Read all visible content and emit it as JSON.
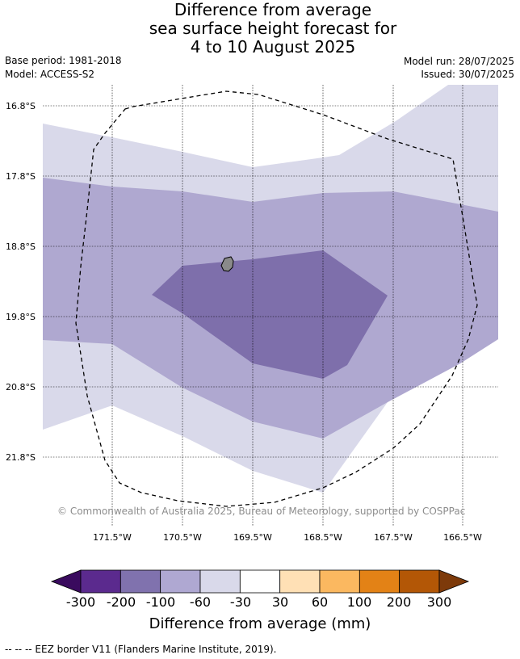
{
  "title": {
    "line1": "Difference from average",
    "line2": "sea surface height forecast for",
    "line3": "4 to 10 August 2025"
  },
  "meta": {
    "base_period": "Base period: 1981-2018",
    "model": "Model: ACCESS-S2",
    "model_run": "Model run: 28/07/2025",
    "issued": "Issued: 30/07/2025"
  },
  "map": {
    "latitude_labels": [
      "16.8°S",
      "17.8°S",
      "18.8°S",
      "19.8°S",
      "20.8°S",
      "21.8°S"
    ],
    "longitude_labels": [
      "171.5°W",
      "170.5°W",
      "169.5°W",
      "168.5°W",
      "167.5°W",
      "166.5°W"
    ],
    "colors": {
      "band_minus30_minus60": "#d9d9ea",
      "band_minus60_minus100": "#afa8d0",
      "band_minus100_minus200": "#7e6fab",
      "land": "#8a8a8a"
    },
    "copyright": "© Commonwealth of Australia 2025, Bureau of Meteorology, supported by COSPPac"
  },
  "colorbar": {
    "colors": [
      "#3a0b5e",
      "#5b2a8e",
      "#8072ae",
      "#afa8d2",
      "#d9d9ea",
      "#ffffff",
      "#ffe0b5",
      "#fbb860",
      "#e38216",
      "#b35706",
      "#7d3a0a"
    ],
    "ticks": [
      "-300",
      "-200",
      "-100",
      "-60",
      "-30",
      "30",
      "60",
      "100",
      "200",
      "300"
    ],
    "label": "Difference from average (mm)"
  },
  "footnote": "--  --  -- EEZ border V11 (Flanders Marine Institute, 2019)."
}
